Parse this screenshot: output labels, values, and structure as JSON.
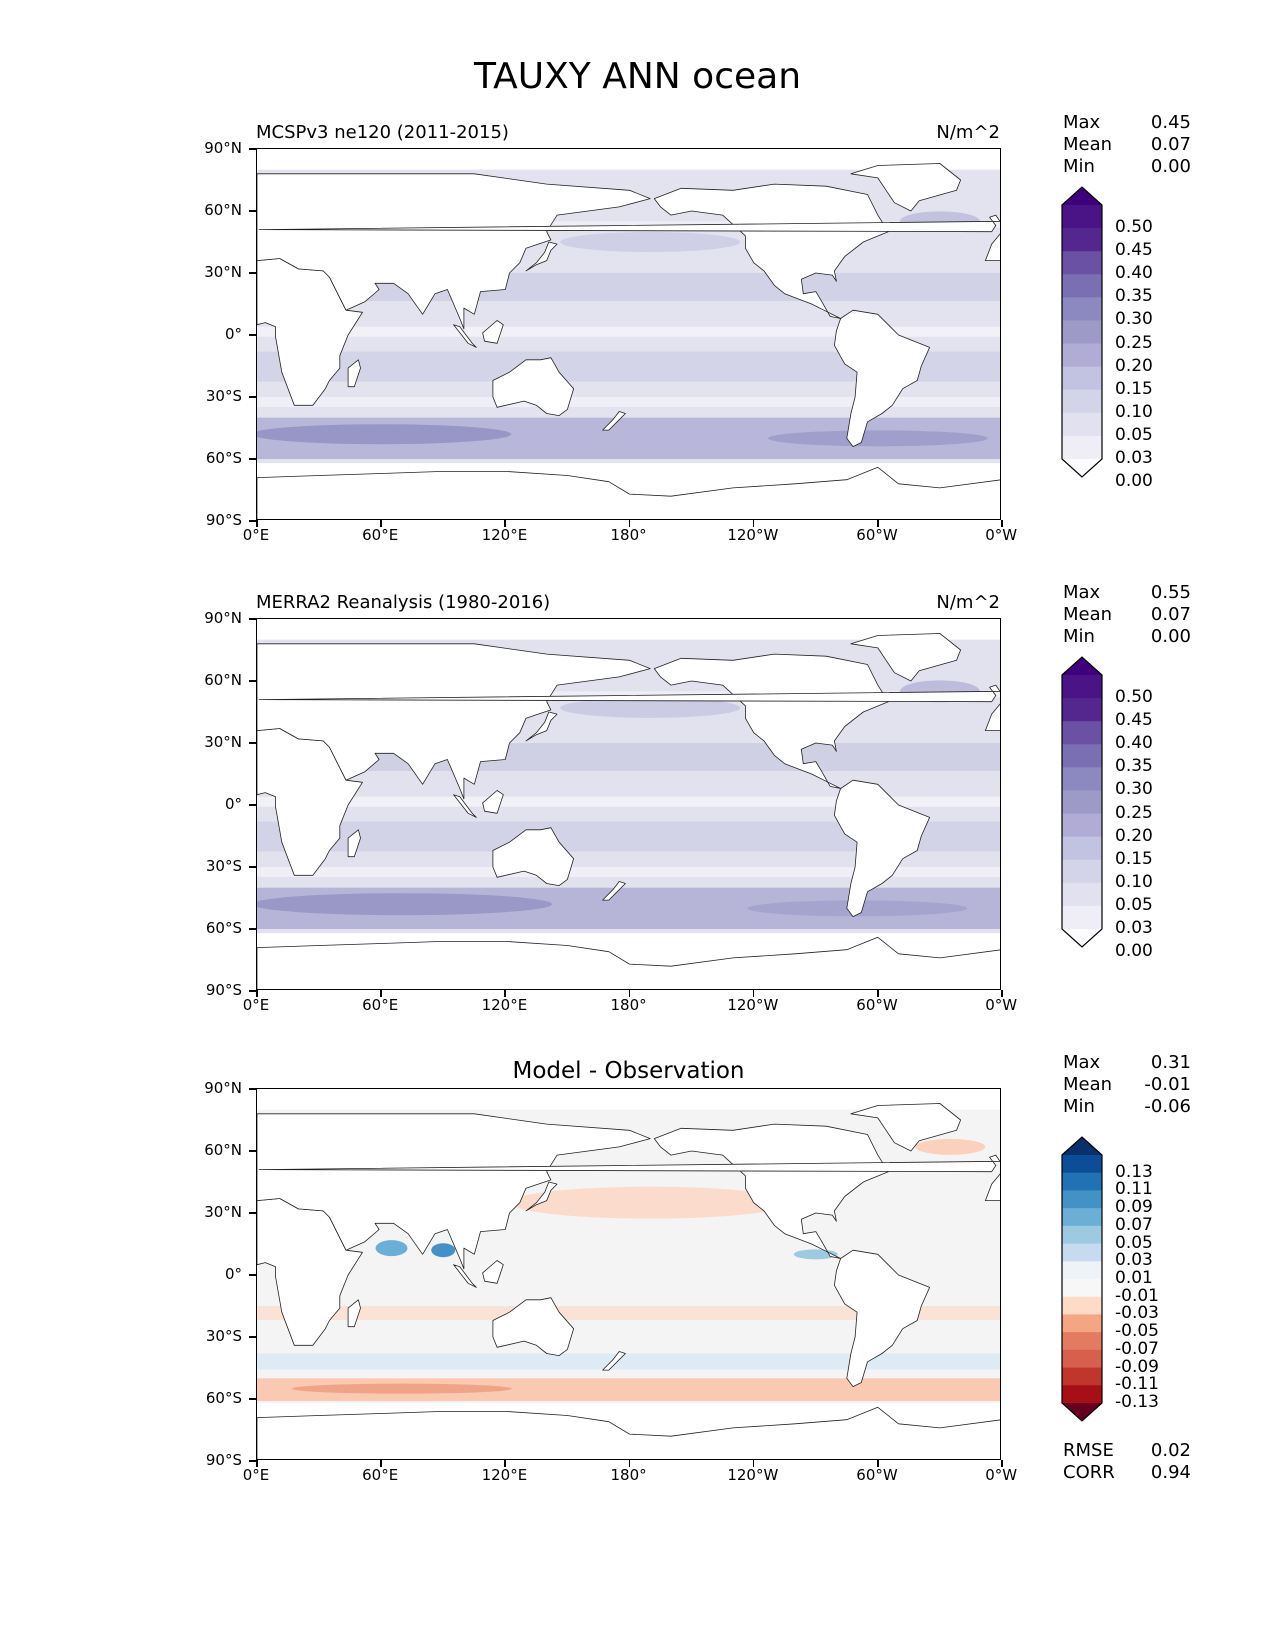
{
  "title": "TAUXY ANN ocean",
  "axes": {
    "y_ticks": [
      "90°N",
      "60°N",
      "30°N",
      "0°",
      "30°S",
      "60°S",
      "90°S"
    ],
    "x_ticks": [
      "0°E",
      "60°E",
      "120°E",
      "180°",
      "120°W",
      "60°W",
      "0°W"
    ]
  },
  "panels": [
    {
      "title_left": "MCSPv3 ne120 (2011-2015)",
      "title_right": "N/m^2",
      "stats": [
        {
          "label": "Max",
          "value": "0.45"
        },
        {
          "label": "Mean",
          "value": "0.07"
        },
        {
          "label": "Min",
          "value": "0.00"
        }
      ],
      "colorbar_labels": [
        "0.50",
        "0.45",
        "0.40",
        "0.35",
        "0.30",
        "0.25",
        "0.20",
        "0.15",
        "0.10",
        "0.05",
        "0.03",
        "0.00"
      ],
      "colorbar_colors": [
        "#3f007d",
        "#4a1486",
        "#54278f",
        "#6a51a3",
        "#7b6fb3",
        "#8c89c0",
        "#9e9ac8",
        "#b0acd5",
        "#c2c3e0",
        "#d4d4e8",
        "#e1e1ef",
        "#efedf5",
        "#fcfbfd"
      ]
    },
    {
      "title_left": "MERRA2 Reanalysis (1980-2016)",
      "title_right": "N/m^2",
      "stats": [
        {
          "label": "Max",
          "value": "0.55"
        },
        {
          "label": "Mean",
          "value": "0.07"
        },
        {
          "label": "Min",
          "value": "0.00"
        }
      ],
      "colorbar_labels": [
        "0.50",
        "0.45",
        "0.40",
        "0.35",
        "0.30",
        "0.25",
        "0.20",
        "0.15",
        "0.10",
        "0.05",
        "0.03",
        "0.00"
      ],
      "colorbar_colors": [
        "#3f007d",
        "#4a1486",
        "#54278f",
        "#6a51a3",
        "#7b6fb3",
        "#8c89c0",
        "#9e9ac8",
        "#b0acd5",
        "#c2c3e0",
        "#d4d4e8",
        "#e1e1ef",
        "#efedf5",
        "#fcfbfd"
      ]
    },
    {
      "title_center": "Model - Observation",
      "stats": [
        {
          "label": "Max",
          "value": "0.31"
        },
        {
          "label": "Mean",
          "value": "-0.01"
        },
        {
          "label": "Min",
          "value": "-0.06"
        }
      ],
      "colorbar_labels": [
        "0.13",
        "0.11",
        "0.09",
        "0.07",
        "0.05",
        "0.03",
        "0.01",
        "-0.01",
        "-0.03",
        "-0.05",
        "-0.07",
        "-0.09",
        "-0.11",
        "-0.13"
      ],
      "colorbar_colors": [
        "#08306b",
        "#0b4e97",
        "#2171b5",
        "#4292c6",
        "#6baed6",
        "#9ecae1",
        "#c6dbef",
        "#eef3f8",
        "#f7f7f7",
        "#fddbc7",
        "#f4a582",
        "#e37a62",
        "#d6604d",
        "#c0362c",
        "#a50f15",
        "#67001f"
      ],
      "metrics": [
        {
          "label": "RMSE",
          "value": "0.02"
        },
        {
          "label": "CORR",
          "value": "0.94"
        }
      ]
    }
  ]
}
